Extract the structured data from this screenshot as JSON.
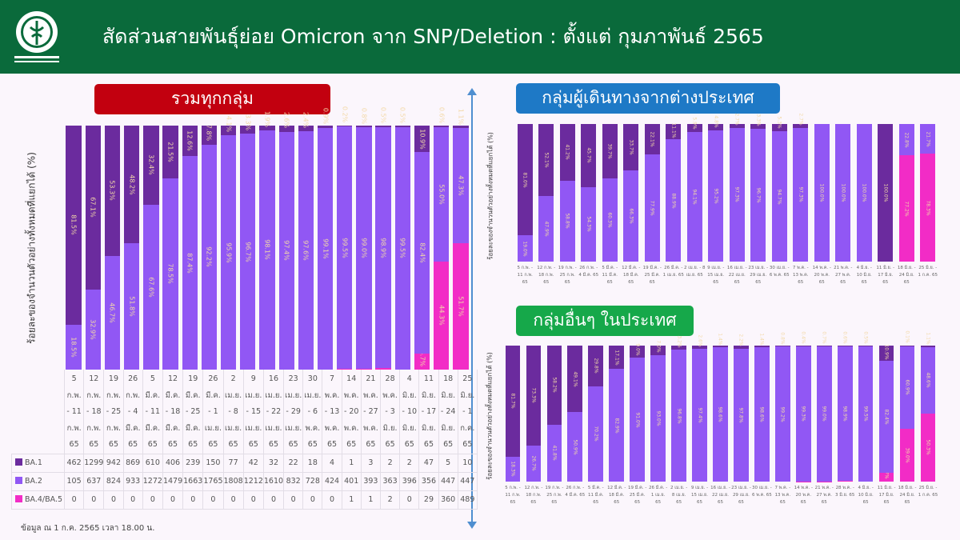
{
  "header": {
    "title": "สัดส่วนสายพันธุ์ย่อย Omicron จาก SNP/Deletion : ตั้งแต่ กุมภาพันธ์ 2565",
    "logo": "กรมวิทยาศาสตร์การแพทย์"
  },
  "note": "ข้อมูล ณ 1 ก.ค. 2565 เวลา 18.00 น.",
  "colors": {
    "BA.1": "#6b2b9e",
    "BA.2": "#9157f4",
    "BA.4/BA.5": "#f22cc6",
    "header": "#0a6a3b"
  },
  "chart_data": [
    {
      "type": "bar",
      "stacked": true,
      "title": "รวมทุกกลุ่ม",
      "ylabel": "ร้อยละของจำนวนตัวอย่างทั้งหมดที่แยกได้ (%)",
      "ylim": [
        0,
        100
      ],
      "categories": [
        "5 ก.พ. - 11 ก.พ. 65",
        "12 ก.พ. - 18 ก.พ. 65",
        "19 ก.พ. - 25 ก.พ. 65",
        "26 ก.พ. - 4 มี.ค. 65",
        "5 มี.ค. - 11 มี.ค. 65",
        "12 มี.ค. - 18 มี.ค. 65",
        "19 มี.ค. - 25 มี.ค. 65",
        "26 มี.ค. - 1 เม.ย. 65",
        "2 เม.ย. - 8 เม.ย. 65",
        "9 เม.ย. - 15 เม.ย. 65",
        "16 เม.ย. - 22 เม.ย. 65",
        "23 เม.ย. - 29 เม.ย. 65",
        "30 เม.ย. - 6 พ.ค. 65",
        "7 พ.ค. - 13 พ.ค. 65",
        "14 พ.ค. - 20 พ.ค. 65",
        "21 พ.ค. - 27 พ.ค. 65",
        "28 พ.ค. - 3 มิ.ย. 65",
        "4 มิ.ย. - 10 มิ.ย. 65",
        "11 มิ.ย. - 17 มิ.ย. 65",
        "18 มิ.ย. - 24 มิ.ย. 65",
        "25 มิ.ย. - 1 ก.ค. 65"
      ],
      "counts": [
        {
          "name": "BA.1",
          "values": [
            462,
            1299,
            942,
            869,
            610,
            406,
            239,
            150,
            77,
            42,
            32,
            22,
            18,
            4,
            1,
            3,
            2,
            2,
            47,
            5,
            10
          ]
        },
        {
          "name": "BA.2",
          "values": [
            105,
            637,
            824,
            933,
            1272,
            1479,
            1663,
            1765,
            1808,
            1212,
            1610,
            832,
            728,
            424,
            401,
            393,
            363,
            396,
            356,
            447,
            447
          ]
        },
        {
          "name": "BA.4/BA.5",
          "values": [
            0,
            0,
            0,
            0,
            0,
            0,
            0,
            0,
            0,
            0,
            0,
            0,
            0,
            0,
            1,
            1,
            2,
            0,
            29,
            360,
            489
          ]
        }
      ]
    },
    {
      "type": "bar",
      "stacked": true,
      "title": "กลุ่มผู้เดินทางจากต่างประเทศ",
      "ylabel": "ร้อยละของจำนวนตัวอย่างทั้งหมดที่แยกได้ (%)",
      "ylim": [
        0,
        100
      ],
      "categories": [
        "5 ก.พ. - 11 ก.พ. 65",
        "12 ก.พ. - 18 ก.พ. 65",
        "19 ก.พ. - 25 ก.พ. 65",
        "26 ก.พ. - 4 มี.ค. 65",
        "5 มี.ค. - 11 มี.ค. 65",
        "12 มี.ค. - 18 มี.ค. 65",
        "19 มี.ค. - 25 มี.ค. 65",
        "26 มี.ค. - 1 เม.ย. 65",
        "2 เม.ย. - 8 เม.ย. 65",
        "9 เม.ย. - 15 เม.ย. 65",
        "16 เม.ย. - 22 เม.ย. 65",
        "23 เม.ย. - 29 เม.ย. 65",
        "30 เม.ย. - 6 พ.ค. 65",
        "7 พ.ค. - 13 พ.ค. 65",
        "14 พ.ค. - 20 พ.ค. 65",
        "21 พ.ค. - 27 พ.ค. 65",
        "4 มิ.ย. - 10 มิ.ย. 65",
        "11 มิ.ย. - 17 มิ.ย. 65",
        "18 มิ.ย. - 24 มิ.ย. 65",
        "25 มิ.ย. - 1 ก.ค. 65"
      ],
      "series": [
        {
          "name": "BA.1",
          "values": [
            81.0,
            52.1,
            41.2,
            45.7,
            39.7,
            33.7,
            22.1,
            11.1,
            5.9,
            4.8,
            2.7,
            3.3,
            5.3,
            2.7,
            0,
            0,
            0,
            100.0,
            0,
            0
          ]
        },
        {
          "name": "BA.2",
          "values": [
            19.0,
            47.9,
            58.8,
            54.3,
            60.3,
            66.3,
            77.9,
            88.9,
            94.1,
            95.2,
            97.3,
            96.7,
            94.7,
            97.3,
            100.0,
            100.0,
            100.0,
            0,
            22.8,
            21.7
          ]
        },
        {
          "name": "BA.4/BA.5",
          "values": [
            0,
            0,
            0,
            0,
            0,
            0,
            0,
            0,
            0,
            0,
            0,
            0,
            0,
            0,
            0,
            0,
            0,
            0,
            77.2,
            78.3
          ]
        }
      ]
    },
    {
      "type": "bar",
      "stacked": true,
      "title": "กลุ่มอื่นๆ ในประเทศ",
      "ylabel": "ร้อยละของจำนวนตัวอย่างทั้งหมดที่แยกได้ (%)",
      "ylim": [
        0,
        100
      ],
      "categories": [
        "5 ก.พ. - 11 ก.พ. 65",
        "12 ก.พ. - 18 ก.พ. 65",
        "19 ก.พ. - 25 ก.พ. 65",
        "26 ก.พ. - 4 มี.ค. 65",
        "5 มี.ค. - 11 มี.ค. 65",
        "12 มี.ค. - 18 มี.ค. 65",
        "19 มี.ค. - 25 มี.ค. 65",
        "26 มี.ค. - 1 เม.ย. 65",
        "2 เม.ย. - 8 เม.ย. 65",
        "9 เม.ย. - 15 เม.ย. 65",
        "16 เม.ย. - 22 เม.ย. 65",
        "23 เม.ย. - 29 เม.ย. 65",
        "30 เม.ย. - 6 พ.ค. 65",
        "7 พ.ค. - 13 พ.ค. 65",
        "14 พ.ค. - 20 พ.ค. 65",
        "21 พ.ค. - 27 พ.ค. 65",
        "28 พ.ค. - 3 มิ.ย. 65",
        "4 มิ.ย. - 10 มิ.ย. 65",
        "11 มิ.ย. - 17 มิ.ย. 65",
        "18 มิ.ย. - 24 มิ.ย. 65",
        "25 มิ.ย. - 1 ก.ค. 65"
      ],
      "series": [
        {
          "name": "BA.1",
          "values": [
            81.7,
            73.3,
            58.2,
            49.1,
            29.8,
            17.1,
            9.0,
            7.0,
            3.2,
            2.6,
            1.4,
            2.2,
            1.4,
            0.8,
            0.4,
            0.7,
            0.6,
            0.5,
            10.9,
            0.1,
            1.1
          ]
        },
        {
          "name": "BA.2",
          "values": [
            18.3,
            26.7,
            41.8,
            50.9,
            70.2,
            82.9,
            91.0,
            93.0,
            96.8,
            97.4,
            98.6,
            97.8,
            98.6,
            99.2,
            99.3,
            99.0,
            98.9,
            99.5,
            82.4,
            60.9,
            48.6
          ]
        },
        {
          "name": "BA.4/BA.5",
          "values": [
            0,
            0,
            0,
            0,
            0,
            0,
            0,
            0,
            0,
            0,
            0,
            0,
            0,
            0,
            0.3,
            0.3,
            0.5,
            0.0,
            6.7,
            39.0,
            50.3
          ]
        }
      ]
    }
  ]
}
